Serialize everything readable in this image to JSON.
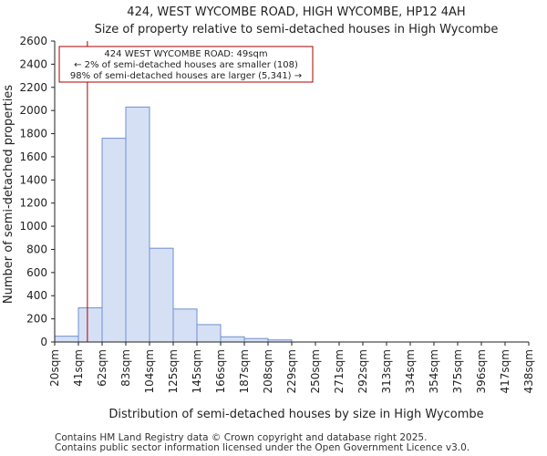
{
  "chart_data": {
    "type": "bar",
    "title": "424, WEST WYCOMBE ROAD, HIGH WYCOMBE, HP12 4AH",
    "subtitle": "Size of property relative to semi-detached houses in High Wycombe",
    "xlabel": "Distribution of semi-detached houses by size in High Wycombe",
    "ylabel": "Number of semi-detached properties",
    "categories": [
      "20sqm",
      "41sqm",
      "62sqm",
      "83sqm",
      "104sqm",
      "125sqm",
      "145sqm",
      "166sqm",
      "187sqm",
      "208sqm",
      "229sqm",
      "250sqm",
      "271sqm",
      "292sqm",
      "313sqm",
      "334sqm",
      "354sqm",
      "375sqm",
      "396sqm",
      "417sqm",
      "438sqm"
    ],
    "values": [
      50,
      295,
      1760,
      2030,
      810,
      285,
      150,
      45,
      30,
      18,
      0,
      0,
      0,
      0,
      0,
      0,
      0,
      0,
      0,
      0,
      0
    ],
    "ylim": [
      0,
      2600
    ],
    "yticks": [
      0,
      200,
      400,
      600,
      800,
      1000,
      1200,
      1400,
      1600,
      1800,
      2000,
      2200,
      2400,
      2600
    ],
    "bar_color": "#d6e0f5",
    "bar_edge_color": "#6f8fcf",
    "marker": {
      "value_sqm": 49,
      "bin_position": 1.38,
      "color": "#aa0000"
    },
    "annotation": {
      "line1": "424 WEST WYCOMBE ROAD: 49sqm",
      "line2": "← 2% of semi-detached houses are smaller (108)",
      "line3": "98% of semi-detached houses are larger (5,341) →"
    }
  },
  "footer": {
    "line1": "Contains HM Land Registry data © Crown copyright and database right 2025.",
    "line2": "Contains public sector information licensed under the Open Government Licence v3.0."
  }
}
